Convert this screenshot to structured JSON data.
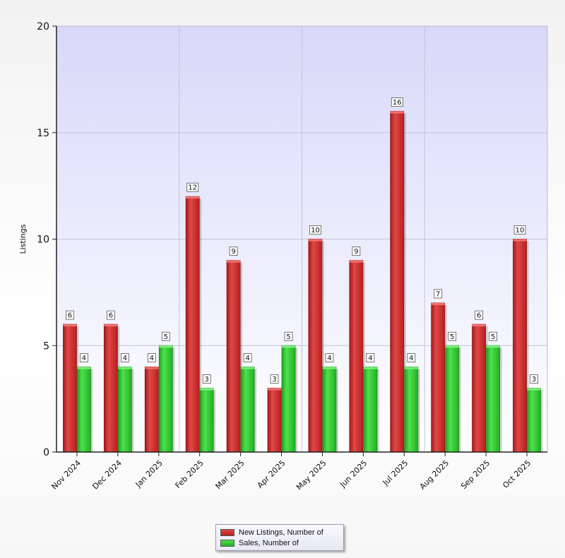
{
  "chart_data": {
    "type": "bar",
    "categories": [
      "Nov 2024",
      "Dec 2024",
      "Jan 2025",
      "Feb 2025",
      "Mar 2025",
      "Apr 2025",
      "May 2025",
      "Jun 2025",
      "Jul 2025",
      "Aug 2025",
      "Sep 2025",
      "Oct 2025"
    ],
    "series": [
      {
        "name": "New Listings, Number of",
        "color": "#cc2a2a",
        "values": [
          6,
          6,
          4,
          12,
          9,
          3,
          10,
          9,
          16,
          7,
          6,
          10
        ]
      },
      {
        "name": "Sales, Number of",
        "color": "#2ecc2e",
        "values": [
          4,
          4,
          5,
          3,
          4,
          5,
          4,
          4,
          4,
          5,
          5,
          3
        ]
      }
    ],
    "title": "",
    "xlabel": "",
    "ylabel": "Listings",
    "ylim": [
      0,
      20
    ],
    "yticks": [
      0,
      5,
      10,
      15,
      20
    ],
    "grid": true,
    "legend_position": "bottom-center"
  }
}
